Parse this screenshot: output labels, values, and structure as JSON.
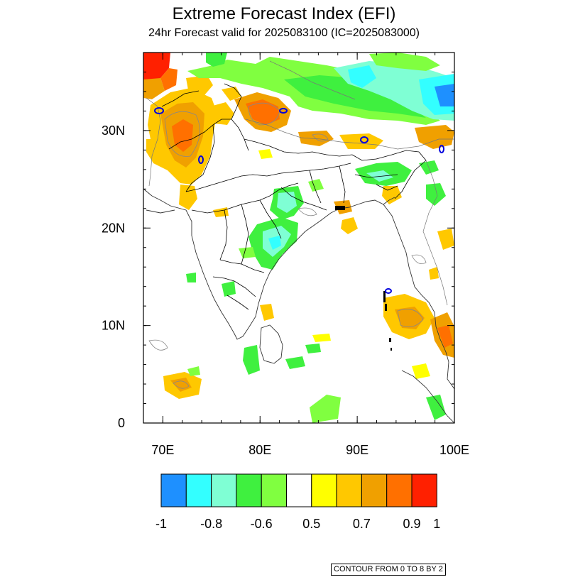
{
  "title": "Extreme Forecast Index (EFI)",
  "subtitle": "24hr Forecast valid for 2025083100 (IC=2025083000)",
  "map": {
    "lon_range": [
      68,
      100
    ],
    "lat_range": [
      0,
      38
    ],
    "lat_ticks": [
      {
        "value": 0,
        "label": "0"
      },
      {
        "value": 10,
        "label": "10N"
      },
      {
        "value": 20,
        "label": "20N"
      },
      {
        "value": 30,
        "label": "30N"
      }
    ],
    "lon_ticks": [
      {
        "value": 70,
        "label": "70E"
      },
      {
        "value": 80,
        "label": "80E"
      },
      {
        "value": 90,
        "label": "90E"
      },
      {
        "value": 100,
        "label": "100E"
      }
    ]
  },
  "colorbar": {
    "colors": [
      "#1e90ff",
      "#33ffff",
      "#7fffd4",
      "#3ff03f",
      "#80ff40",
      "#ffffff",
      "#ffff00",
      "#ffc800",
      "#f0a000",
      "#ff7000",
      "#ff2000"
    ],
    "labels": [
      "-1",
      "-0.8",
      "-0.6",
      "0.5",
      "0.7",
      "0.9",
      "1"
    ]
  },
  "footnote": "CONTOUR FROM 0 TO 8 BY 2"
}
